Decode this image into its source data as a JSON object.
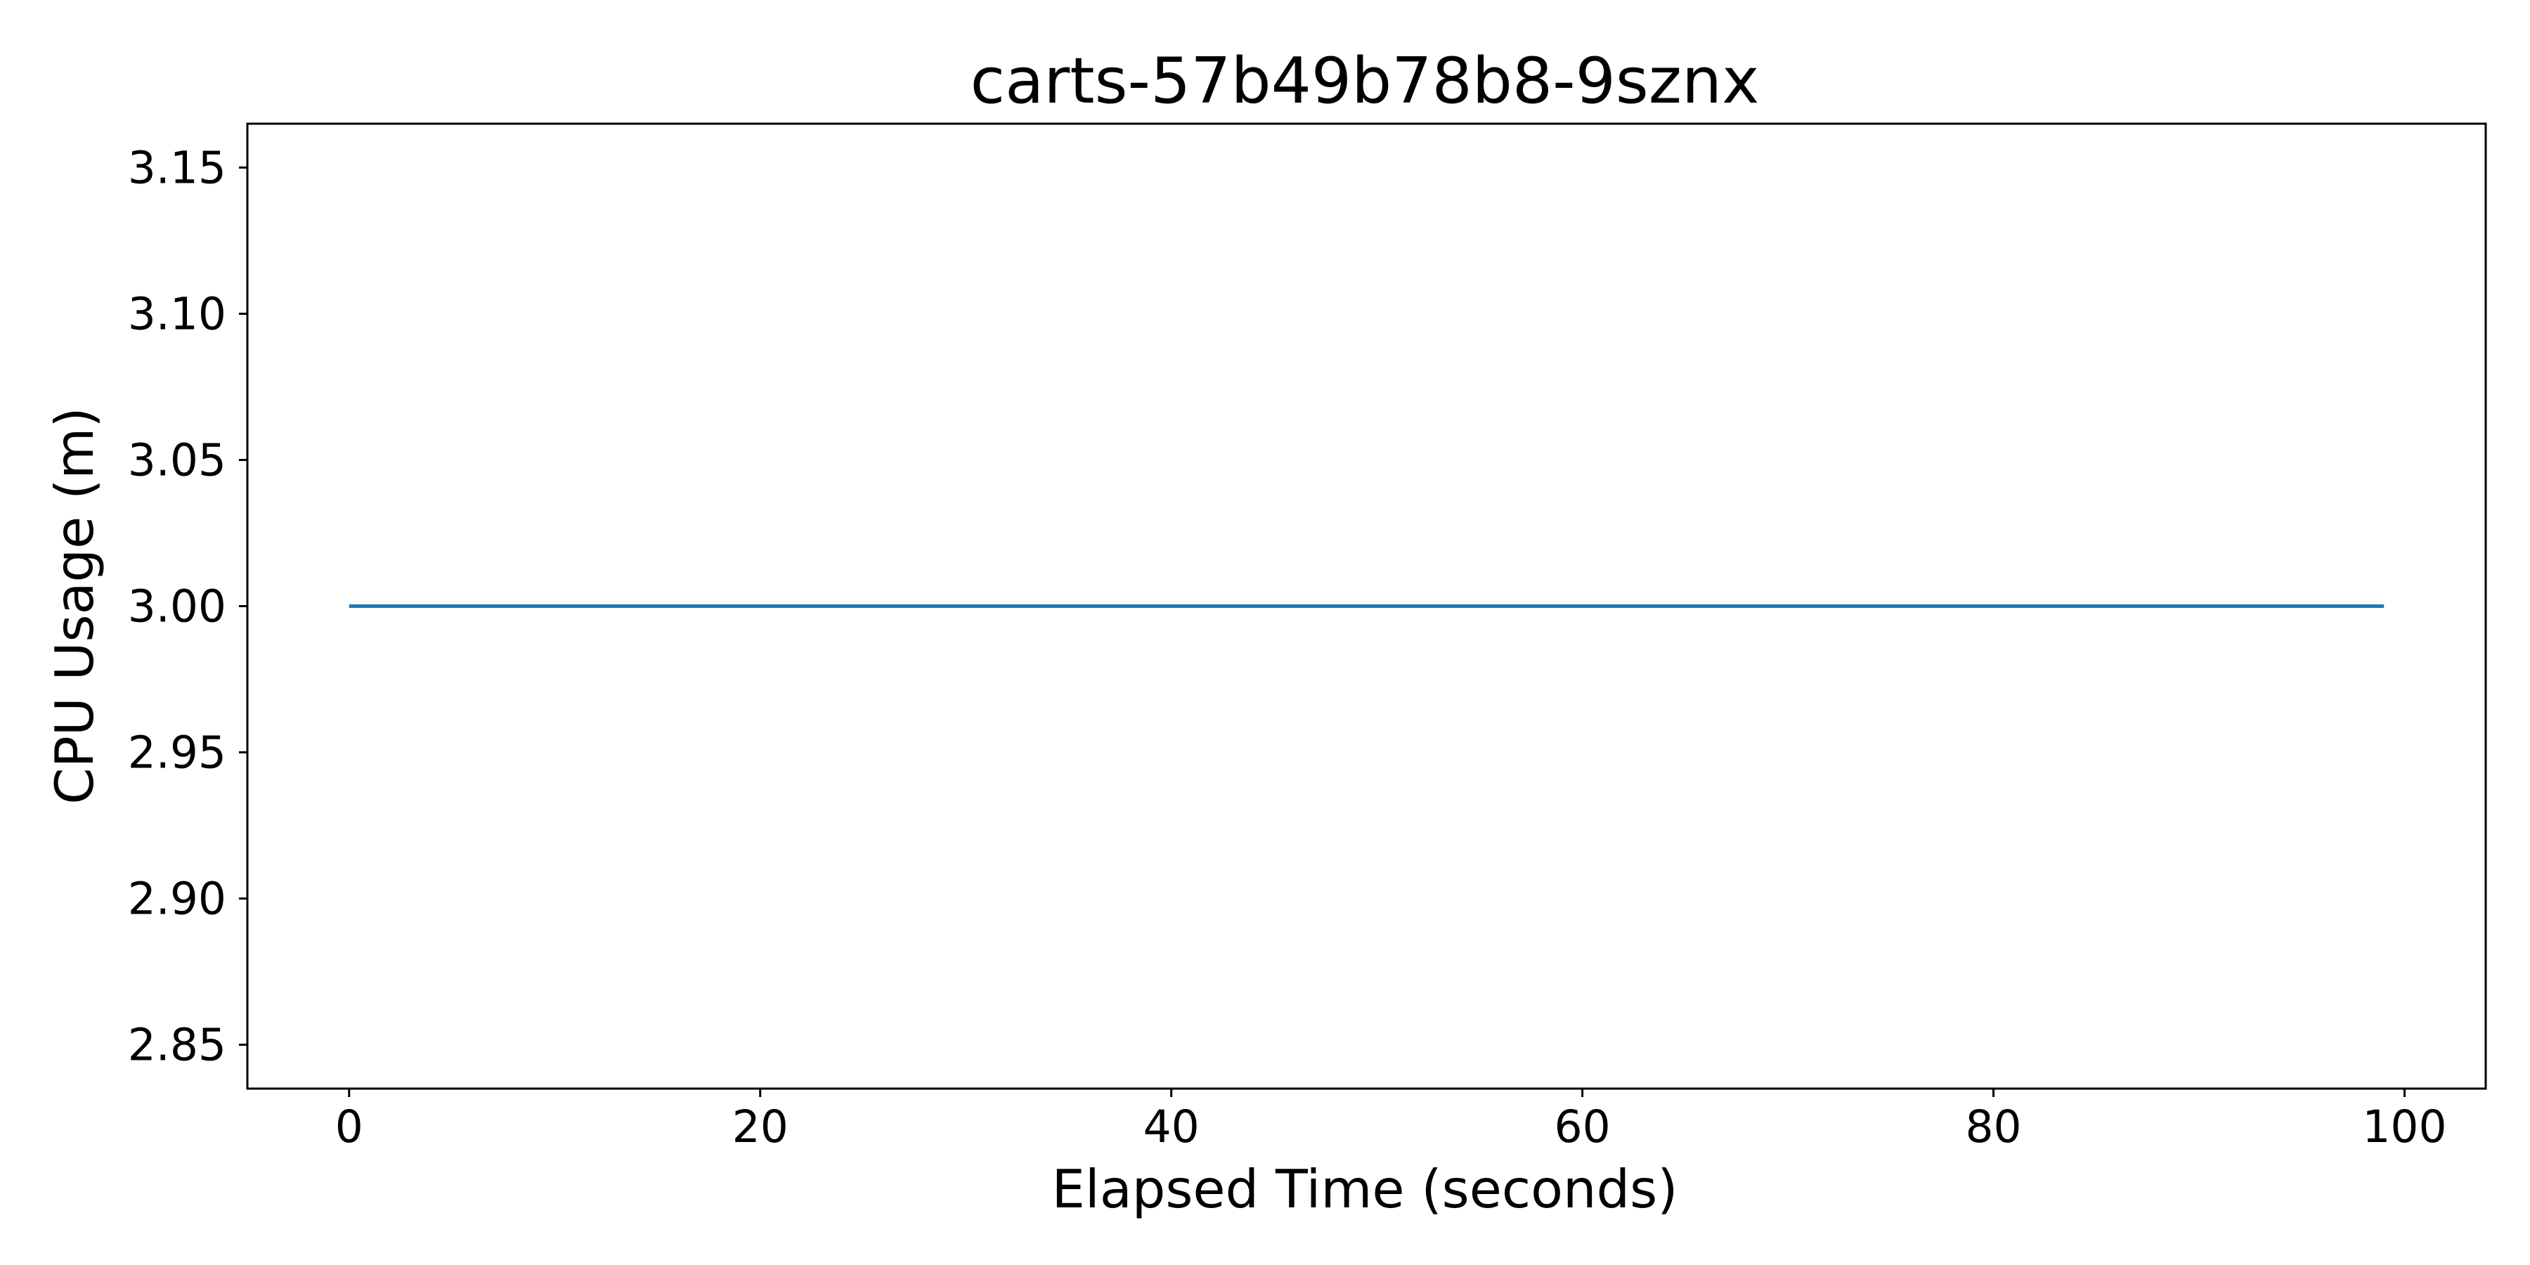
{
  "chart_data": {
    "type": "line",
    "title": "carts-57b49b78b8-9sznx",
    "xlabel": "Elapsed Time (seconds)",
    "ylabel": "CPU Usage (m)",
    "xlim": [
      -4.95,
      103.95
    ],
    "ylim": [
      2.835,
      3.165
    ],
    "xticks": [
      0,
      20,
      40,
      60,
      80,
      100
    ],
    "xtick_labels": [
      "0",
      "20",
      "40",
      "60",
      "80",
      "100"
    ],
    "yticks": [
      2.85,
      2.9,
      2.95,
      3.0,
      3.05,
      3.1,
      3.15
    ],
    "ytick_labels": [
      "2.85",
      "2.90",
      "2.95",
      "3.00",
      "3.05",
      "3.10",
      "3.15"
    ],
    "grid": false,
    "legend": "none",
    "series": [
      {
        "color": "#1f77b4",
        "x": [
          0,
          99
        ],
        "y": [
          3.0,
          3.0
        ]
      }
    ]
  }
}
